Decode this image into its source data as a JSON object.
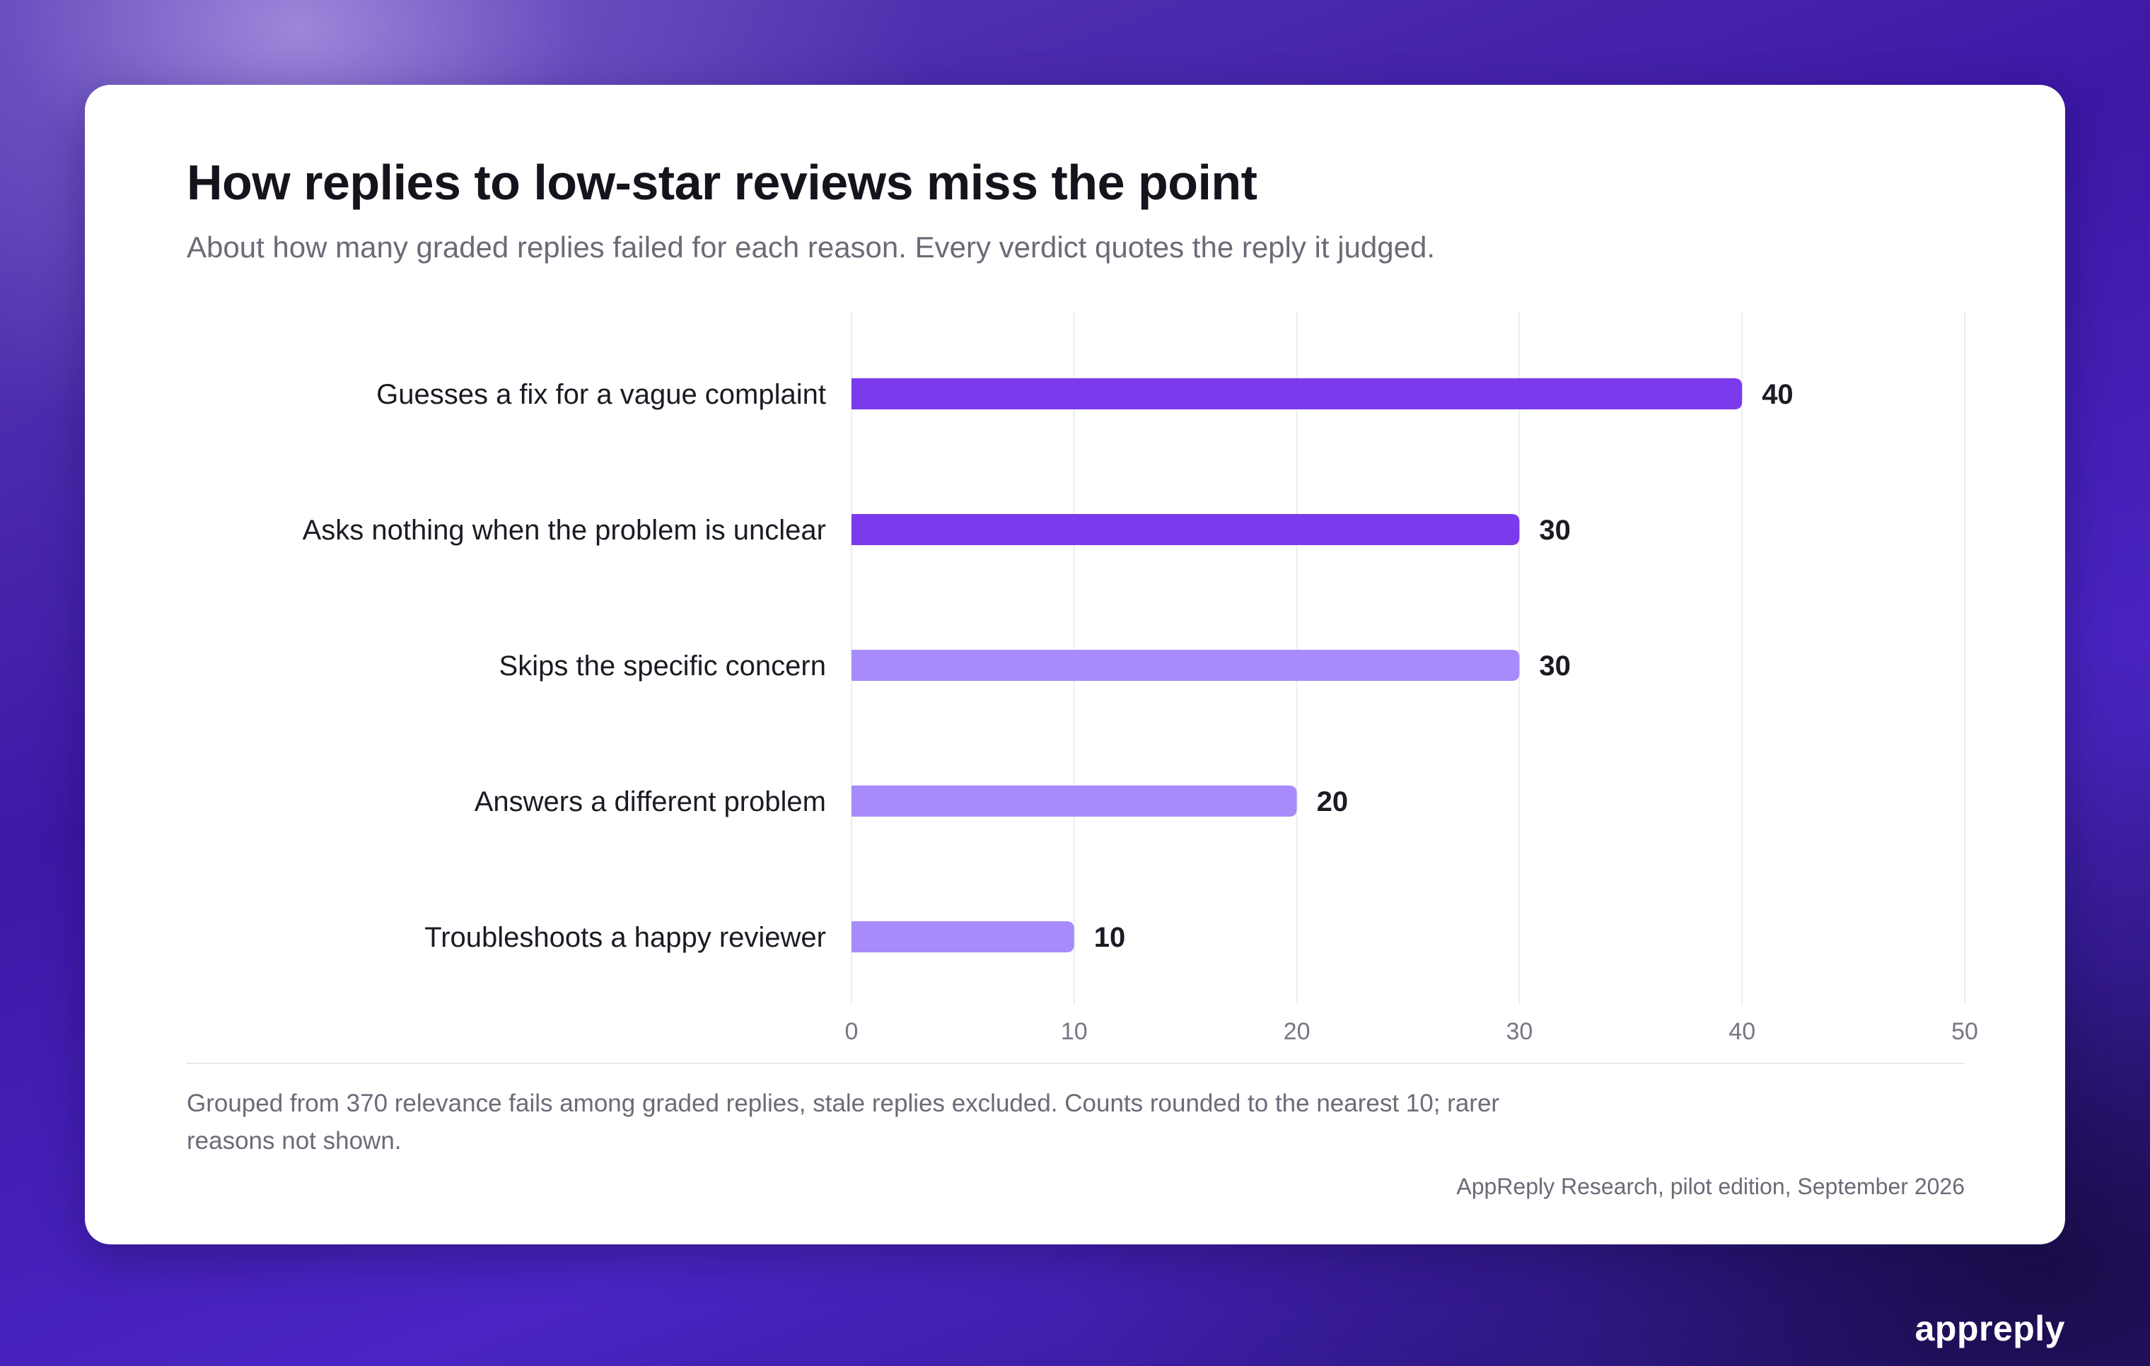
{
  "card": {
    "title": "How replies to low-star reviews miss the point",
    "subtitle": "About how many graded replies failed for each reason. Every verdict quotes the reply it judged.",
    "note": "Grouped from 370 relevance fails among graded replies, stale replies excluded. Counts rounded to the nearest 10; rarer reasons not shown.",
    "source": "AppReply Research, pilot edition, September 2026"
  },
  "brand": {
    "logo_text": "appreply"
  },
  "colors": {
    "primary_bar": "#7c3aed",
    "secondary_bar": "#a78bfa",
    "gridline": "#ececf1"
  },
  "chart_data": {
    "type": "bar",
    "orientation": "horizontal",
    "title": "How replies to low-star reviews miss the point",
    "subtitle": "About how many graded replies failed for each reason. Every verdict quotes the reply it judged.",
    "categories": [
      "Guesses a fix for a vague complaint",
      "Asks nothing when the problem is unclear",
      "Skips the specific concern",
      "Answers a different problem",
      "Troubleshoots a happy reviewer"
    ],
    "values": [
      40,
      30,
      30,
      20,
      10
    ],
    "highlight": [
      true,
      true,
      false,
      false,
      false
    ],
    "xlim": [
      0,
      50
    ],
    "xticks": [
      0,
      10,
      20,
      30,
      40,
      50
    ],
    "grid": true,
    "legend": "none"
  }
}
